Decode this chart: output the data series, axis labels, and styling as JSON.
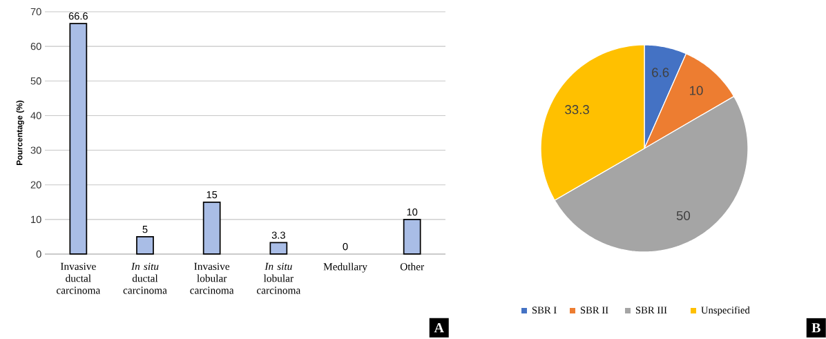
{
  "chart_data": [
    {
      "type": "bar",
      "ylabel": "Pourcentage (%)",
      "categories": [
        "Invasive ductal carcinoma",
        "*In situ* ductal carcinoma",
        "Invasive lobular carcinoma",
        "*In situ* lobular carcinoma",
        "Medullary",
        "Other"
      ],
      "values": [
        66.6,
        5,
        15,
        3.3,
        0,
        10
      ],
      "color": "#a9bde6",
      "ylim": [
        0,
        70
      ],
      "yticks": [
        0,
        10,
        20,
        30,
        40,
        50,
        60,
        70
      ],
      "grid": "y",
      "data_labels": true,
      "annotations": [
        "A"
      ]
    },
    {
      "type": "pie",
      "categories": [
        "SBR I",
        "SBR II",
        "SBR III",
        "Unspecified"
      ],
      "values": [
        6.6,
        10,
        50,
        33.3
      ],
      "colors": [
        "#4472c4",
        "#ed7d31",
        "#a5a5a5",
        "#ffc000"
      ],
      "data_labels": true,
      "legend": "bottom",
      "annotations": [
        "B"
      ]
    }
  ]
}
